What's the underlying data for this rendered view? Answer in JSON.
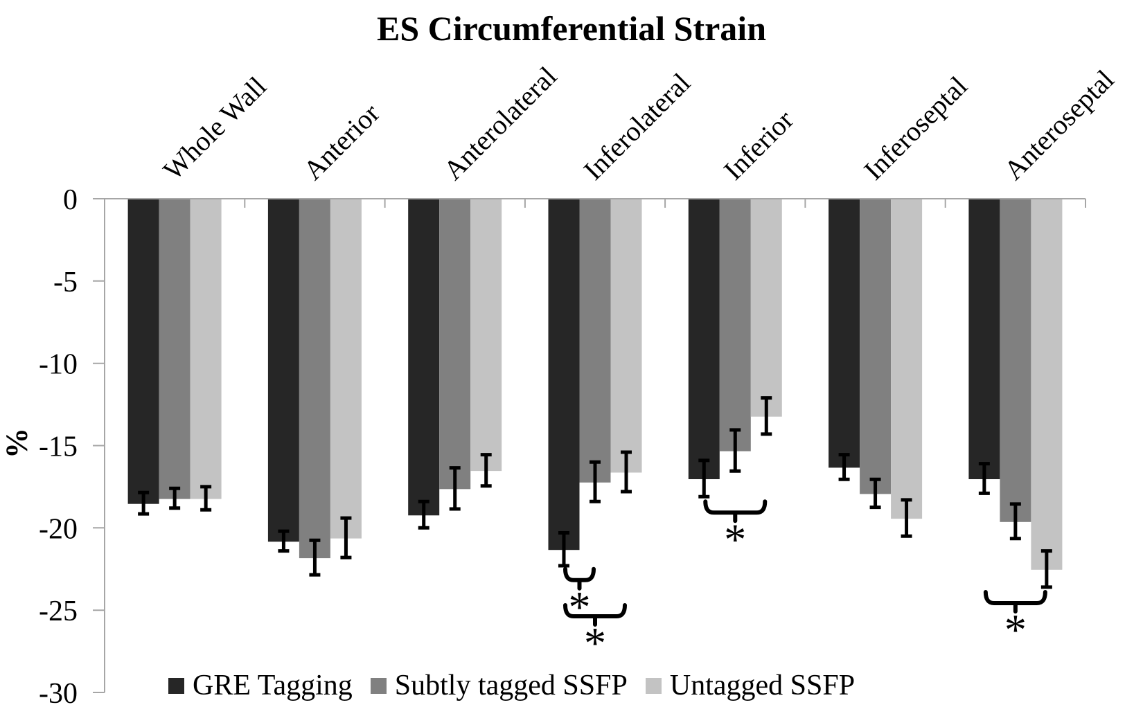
{
  "chart_data": {
    "type": "bar",
    "title": "ES Circumferential Strain",
    "ylabel": "%",
    "y_axis": {
      "min": -30,
      "max": 0,
      "tick_step": 5,
      "tick_labels": [
        "0",
        "-5",
        "-10",
        "-15",
        "-20",
        "-25",
        "-30"
      ]
    },
    "grid": false,
    "legend_position": "bottom",
    "axis_color": "#a6a6a6",
    "text_color": "#000000",
    "error_bar_color": "#000000",
    "categories": [
      "Whole Wall",
      "Anterior",
      "Anterolateral",
      "Inferolateral",
      "Inferior",
      "Inferoseptal",
      "Anteroseptal"
    ],
    "series": [
      {
        "name": "GRE Tagging",
        "color": "#262626",
        "values": [
          -18.5,
          -20.8,
          -19.2,
          -21.3,
          -17.0,
          -16.3,
          -17.0
        ],
        "errors": [
          0.65,
          0.6,
          0.8,
          1.0,
          1.1,
          0.75,
          0.9
        ]
      },
      {
        "name": "Subtly tagged SSFP",
        "color": "#808080",
        "values": [
          -18.2,
          -21.8,
          -17.6,
          -17.2,
          -15.3,
          -17.9,
          -19.6
        ],
        "errors": [
          0.6,
          1.05,
          1.25,
          1.2,
          1.25,
          0.85,
          1.05
        ]
      },
      {
        "name": "Untagged SSFP",
        "color": "#c3c3c3",
        "values": [
          -18.2,
          -20.6,
          -16.5,
          -16.6,
          -13.2,
          -19.4,
          -22.5
        ],
        "errors": [
          0.7,
          1.2,
          0.95,
          1.2,
          1.1,
          1.1,
          1.1
        ]
      }
    ],
    "significance_annotations": [
      {
        "label": "*",
        "category": "Inferolateral",
        "between": [
          "GRE Tagging",
          "Subtly tagged SSFP"
        ],
        "bracket_top_value": -22.5
      },
      {
        "label": "*",
        "category": "Inferolateral",
        "between": [
          "GRE Tagging",
          "Untagged SSFP"
        ],
        "bracket_top_value": -24.7
      },
      {
        "label": "*",
        "category": "Inferior",
        "between": [
          "GRE Tagging",
          "Untagged SSFP"
        ],
        "bracket_top_value": -18.4
      },
      {
        "label": "*",
        "category": "Anteroseptal",
        "between": [
          "GRE Tagging",
          "Untagged SSFP"
        ],
        "bracket_top_value": -23.9
      }
    ]
  }
}
